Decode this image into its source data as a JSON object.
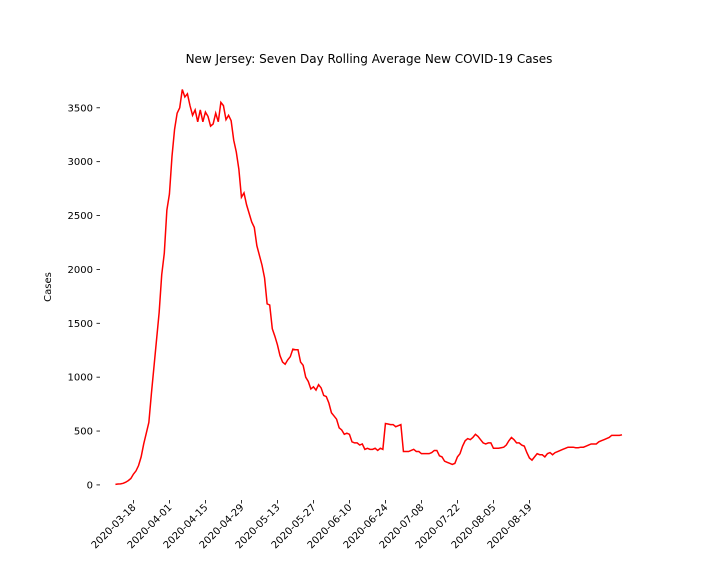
{
  "chart_data": {
    "type": "line",
    "title": "New Jersey: Seven Day Rolling Average New COVID-19 Cases",
    "y_label": "Cases",
    "x": [
      "2020-03-11",
      "2020-03-12",
      "2020-03-13",
      "2020-03-14",
      "2020-03-15",
      "2020-03-16",
      "2020-03-17",
      "2020-03-18",
      "2020-03-19",
      "2020-03-20",
      "2020-03-21",
      "2020-03-22",
      "2020-03-23",
      "2020-03-24",
      "2020-03-25",
      "2020-03-26",
      "2020-03-27",
      "2020-03-28",
      "2020-03-29",
      "2020-03-30",
      "2020-03-31",
      "2020-04-01",
      "2020-04-02",
      "2020-04-03",
      "2020-04-04",
      "2020-04-05",
      "2020-04-06",
      "2020-04-07",
      "2020-04-08",
      "2020-04-09",
      "2020-04-10",
      "2020-04-11",
      "2020-04-12",
      "2020-04-13",
      "2020-04-14",
      "2020-04-15",
      "2020-04-16",
      "2020-04-17",
      "2020-04-18",
      "2020-04-19",
      "2020-04-20",
      "2020-04-21",
      "2020-04-22",
      "2020-04-23",
      "2020-04-24",
      "2020-04-25",
      "2020-04-26",
      "2020-04-27",
      "2020-04-28",
      "2020-04-29",
      "2020-04-30",
      "2020-05-01",
      "2020-05-02",
      "2020-05-03",
      "2020-05-04",
      "2020-05-05",
      "2020-05-06",
      "2020-05-07",
      "2020-05-08",
      "2020-05-09",
      "2020-05-10",
      "2020-05-11",
      "2020-05-12",
      "2020-05-13",
      "2020-05-14",
      "2020-05-15",
      "2020-05-16",
      "2020-05-17",
      "2020-05-18",
      "2020-05-19",
      "2020-05-20",
      "2020-05-21",
      "2020-05-22",
      "2020-05-23",
      "2020-05-24",
      "2020-05-25",
      "2020-05-26",
      "2020-05-27",
      "2020-05-28",
      "2020-05-29",
      "2020-05-30",
      "2020-05-31",
      "2020-06-01",
      "2020-06-02",
      "2020-06-03",
      "2020-06-04",
      "2020-06-05",
      "2020-06-06",
      "2020-06-07",
      "2020-06-08",
      "2020-06-09",
      "2020-06-10",
      "2020-06-11",
      "2020-06-12",
      "2020-06-13",
      "2020-06-14",
      "2020-06-15",
      "2020-06-16",
      "2020-06-17",
      "2020-06-18",
      "2020-06-19",
      "2020-06-20",
      "2020-06-21",
      "2020-06-22",
      "2020-06-23",
      "2020-06-24",
      "2020-06-25",
      "2020-06-26",
      "2020-06-27",
      "2020-06-28",
      "2020-06-29",
      "2020-06-30",
      "2020-07-01",
      "2020-07-02",
      "2020-07-03",
      "2020-07-04",
      "2020-07-05",
      "2020-07-06",
      "2020-07-07",
      "2020-07-08",
      "2020-07-09",
      "2020-07-10",
      "2020-07-11",
      "2020-07-12",
      "2020-07-13",
      "2020-07-14",
      "2020-07-15",
      "2020-07-16",
      "2020-07-17",
      "2020-07-18",
      "2020-07-19",
      "2020-07-20",
      "2020-07-21",
      "2020-07-22",
      "2020-07-23",
      "2020-07-24",
      "2020-07-25",
      "2020-07-26",
      "2020-07-27",
      "2020-07-28",
      "2020-07-29",
      "2020-07-30",
      "2020-07-31",
      "2020-08-01",
      "2020-08-02",
      "2020-08-03",
      "2020-08-04",
      "2020-08-05",
      "2020-08-06",
      "2020-08-07",
      "2020-08-08",
      "2020-08-09",
      "2020-08-10",
      "2020-08-11",
      "2020-08-12",
      "2020-08-13",
      "2020-08-14",
      "2020-08-15",
      "2020-08-16",
      "2020-08-17",
      "2020-08-18",
      "2020-08-19",
      "2020-08-20",
      "2020-08-21",
      "2020-08-22",
      "2020-08-23",
      "2020-08-24",
      "2020-08-25",
      "2020-08-26",
      "2020-08-27",
      "2020-08-28",
      "2020-08-29",
      "2020-08-30",
      "2020-08-31",
      "2020-09-01",
      "2020-09-02",
      "2020-09-03",
      "2020-09-04",
      "2020-09-05",
      "2020-09-06",
      "2020-09-07",
      "2020-09-08",
      "2020-09-09",
      "2020-09-10",
      "2020-09-11",
      "2020-09-12",
      "2020-09-13",
      "2020-09-14",
      "2020-09-15",
      "2020-09-16",
      "2020-09-17",
      "2020-09-18",
      "2020-09-19",
      "2020-09-20",
      "2020-09-21",
      "2020-09-22",
      "2020-09-23",
      "2020-09-24"
    ],
    "series": [
      {
        "name": "Cases",
        "color": "#ff0000",
        "values": [
          5,
          8,
          10,
          15,
          25,
          40,
          60,
          100,
          130,
          180,
          260,
          380,
          480,
          580,
          850,
          1100,
          1350,
          1600,
          1950,
          2150,
          2550,
          2700,
          3050,
          3300,
          3450,
          3500,
          3670,
          3600,
          3630,
          3520,
          3430,
          3480,
          3370,
          3480,
          3370,
          3460,
          3420,
          3330,
          3350,
          3450,
          3370,
          3550,
          3520,
          3390,
          3430,
          3380,
          3200,
          3090,
          2930,
          2670,
          2710,
          2600,
          2520,
          2440,
          2390,
          2220,
          2130,
          2040,
          1920,
          1680,
          1670,
          1450,
          1380,
          1300,
          1200,
          1140,
          1120,
          1160,
          1190,
          1260,
          1255,
          1255,
          1140,
          1110,
          1000,
          960,
          890,
          910,
          880,
          930,
          900,
          830,
          820,
          760,
          670,
          640,
          610,
          530,
          510,
          470,
          480,
          470,
          400,
          390,
          390,
          370,
          380,
          330,
          340,
          330,
          330,
          340,
          320,
          340,
          330,
          570,
          565,
          560,
          560,
          540,
          550,
          560,
          310,
          310,
          310,
          320,
          330,
          310,
          310,
          290,
          290,
          290,
          290,
          300,
          320,
          320,
          270,
          260,
          220,
          210,
          200,
          190,
          200,
          260,
          290,
          360,
          410,
          430,
          420,
          440,
          470,
          450,
          420,
          390,
          380,
          390,
          390,
          340,
          340,
          340,
          345,
          350,
          370,
          410,
          440,
          420,
          390,
          390,
          370,
          360,
          300,
          250,
          230,
          260,
          290,
          280,
          280,
          260,
          290,
          300,
          280,
          300,
          310,
          320,
          330,
          340,
          350,
          350,
          350,
          345,
          345,
          350,
          350,
          360,
          370,
          380,
          380,
          380,
          400,
          410,
          420,
          430,
          440,
          460,
          460,
          460,
          460,
          465
        ]
      }
    ],
    "xlim": [
      "2020-03-05",
      "2020-10-01"
    ],
    "xticks": [
      "2020-03-18",
      "2020-04-01",
      "2020-04-15",
      "2020-04-29",
      "2020-05-13",
      "2020-05-27",
      "2020-06-10",
      "2020-06-24",
      "2020-07-08",
      "2020-07-22",
      "2020-08-05",
      "2020-08-19"
    ],
    "ylim": [
      -140,
      3860
    ],
    "yticks": [
      0,
      500,
      1000,
      1500,
      2000,
      2500,
      3000,
      3500
    ],
    "grid": false
  }
}
